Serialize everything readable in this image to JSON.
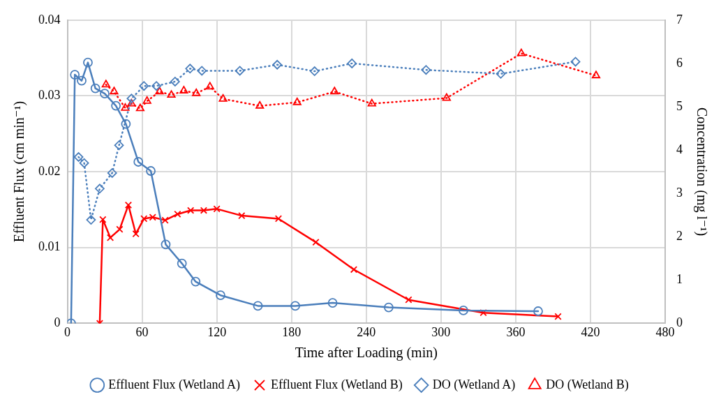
{
  "chart_data": {
    "type": "line",
    "xlabel": "Time after Loading (min)",
    "ylabel": "Effluent Flux (cm min⁻¹)",
    "y2label": "Concentration (mg l⁻¹)",
    "xlim": [
      0,
      480
    ],
    "xticks": [
      0,
      60,
      120,
      180,
      240,
      300,
      360,
      420,
      480
    ],
    "ylim": [
      0,
      0.04
    ],
    "yticks": [
      0,
      0.01,
      0.02,
      0.03,
      0.04
    ],
    "y2lim": [
      0,
      7
    ],
    "y2ticks": [
      0,
      1,
      2,
      3,
      4,
      5,
      6,
      7
    ],
    "grid": true,
    "legend": "bottom",
    "series": [
      {
        "name": "Effluent Flux (Wetland A)",
        "color": "#4a7ebb",
        "marker": "circle",
        "line_style": "solid",
        "x": [
          3,
          6,
          11.5,
          16.5,
          22.5,
          30,
          39,
          47,
          57,
          67,
          79,
          92,
          103,
          123,
          153,
          183,
          213,
          258,
          318,
          378
        ],
        "values": [
          0,
          0.0328,
          0.032,
          0.0344,
          0.031,
          0.0303,
          0.0287,
          0.0263,
          0.0213,
          0.0201,
          0.0104,
          0.0079,
          0.0055,
          0.0037,
          0.0023,
          0.0023,
          0.0027,
          0.0021,
          0.0017,
          0.0016
        ]
      },
      {
        "name": "Effluent Flux (Wetland B)",
        "color": "#ff0000",
        "marker": "cross",
        "line_style": "solid",
        "x": [
          26,
          28.5,
          34.5,
          42,
          49,
          55,
          61.5,
          68.5,
          78.5,
          88.5,
          99,
          109.5,
          120,
          140,
          169.5,
          199.5,
          230,
          274,
          334,
          394
        ],
        "values": [
          0,
          0.0137,
          0.0113,
          0.0124,
          0.0156,
          0.0118,
          0.0138,
          0.014,
          0.0136,
          0.0144,
          0.0149,
          0.0149,
          0.0151,
          0.0142,
          0.0138,
          0.0107,
          0.0071,
          0.0031,
          0.0014,
          0.0009
        ]
      },
      {
        "name": "DO (Wetland A)",
        "color": "#4a7ebb",
        "marker": "diamond",
        "line_style": "dotted",
        "axis": "y2",
        "x": [
          9,
          13.5,
          19,
          26,
          36,
          41.5,
          51.5,
          61.5,
          71.5,
          86.5,
          98.5,
          108,
          138.5,
          168.5,
          198.5,
          228.5,
          288,
          348,
          408
        ],
        "values": [
          3.84,
          3.7,
          2.39,
          3.11,
          3.47,
          4.11,
          5.19,
          5.48,
          5.48,
          5.58,
          5.88,
          5.83,
          5.83,
          5.97,
          5.82,
          6,
          5.85,
          5.76,
          6.04
        ]
      },
      {
        "name": "DO (Wetland B)",
        "color": "#ff0000",
        "marker": "triangle",
        "line_style": "dotted",
        "axis": "y2",
        "x": [
          31,
          37.5,
          46.5,
          51.5,
          58.5,
          64,
          74,
          83.5,
          93.5,
          103.5,
          114.5,
          125,
          154.5,
          184.5,
          214.5,
          244.5,
          304.5,
          364.5,
          424.5
        ],
        "values": [
          5.51,
          5.35,
          4.97,
          5.07,
          4.96,
          5.13,
          5.35,
          5.27,
          5.37,
          5.31,
          5.46,
          5.18,
          5.02,
          5.1,
          5.35,
          5.07,
          5.2,
          6.23,
          5.72
        ]
      }
    ]
  }
}
